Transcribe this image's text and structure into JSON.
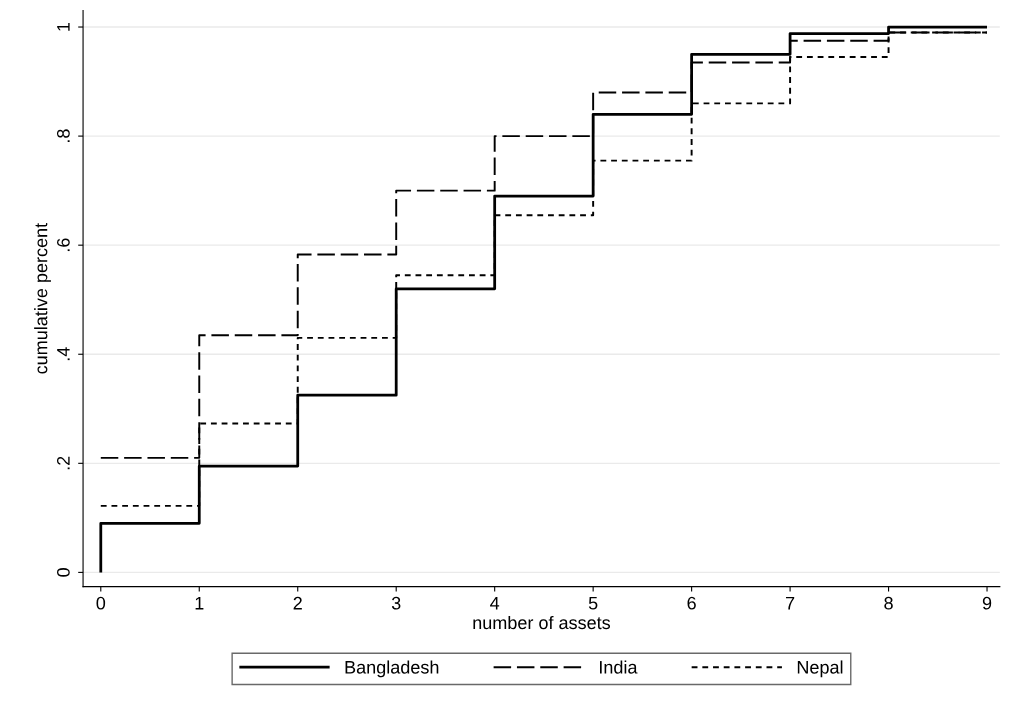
{
  "chart_data": {
    "type": "step",
    "xlabel": "number of assets",
    "ylabel": "cumulative percent",
    "x": [
      0,
      0,
      1,
      2,
      3,
      4,
      5,
      6,
      7,
      8,
      9
    ],
    "series": [
      {
        "name": "Bangladesh",
        "color": "#000000",
        "line_style": "solid",
        "values": [
          0,
          0.09,
          0.195,
          0.325,
          0.52,
          0.69,
          0.84,
          0.95,
          0.988,
          1.0,
          1.0
        ]
      },
      {
        "name": "India",
        "color": "#000000",
        "line_style": "dashed",
        "values": [
          null,
          0.21,
          0.435,
          0.583,
          0.7,
          0.8,
          0.88,
          0.935,
          0.975,
          0.99,
          0.99
        ]
      },
      {
        "name": "Nepal",
        "color": "#000000",
        "line_style": "dotted",
        "values": [
          null,
          0.122,
          0.273,
          0.43,
          0.545,
          0.655,
          0.755,
          0.86,
          0.945,
          0.99,
          0.99
        ]
      }
    ],
    "xlim": [
      -0.18,
      9.13
    ],
    "ylim": [
      -0.026,
      1.03
    ],
    "xticks": [
      0,
      1,
      2,
      3,
      4,
      5,
      6,
      7,
      8,
      9
    ],
    "yticks": [
      0,
      {
        "value": 0.2,
        "label": ".2"
      },
      {
        "value": 0.4,
        "label": ".4"
      },
      {
        "value": 0.6,
        "label": ".6"
      },
      {
        "value": 0.8,
        "label": ".8"
      },
      1
    ],
    "grid": "y",
    "legend": "bottom"
  }
}
